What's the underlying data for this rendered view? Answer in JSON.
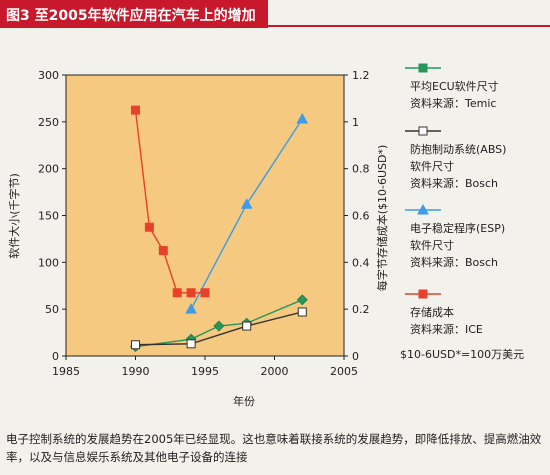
{
  "figure": {
    "title": "图3 至2005年软件应用在汽车上的增加",
    "caption": "电子控制系统的发展趋势在2005年已经显现。这也意味着联接系统的发展趋势，即降低排放、提高燃油效率，以及与信息娱乐系统及其他电子设备的连接"
  },
  "chart_data": {
    "type": "line",
    "xlabel": "年份",
    "ylabel": "软件大小(千字节)",
    "y2label": "每字节存储成本($10-6USD*)",
    "xlim": [
      1985,
      2005
    ],
    "ylim": [
      0,
      300
    ],
    "y2lim": [
      0,
      1.2
    ],
    "x_ticks": [
      "1985",
      "1990",
      "1995",
      "2000",
      "2005"
    ],
    "y_ticks": [
      "0",
      "50",
      "100",
      "150",
      "200",
      "250",
      "300"
    ],
    "y2_ticks": [
      "0",
      "0.2",
      "0.4",
      "0.6",
      "0.8",
      "1",
      "1.2"
    ],
    "plot_background": "#f5c97f",
    "grid": false,
    "legend_position": "right",
    "footnote": "$10-6USD*=100万美元",
    "series": [
      {
        "key": "ecu",
        "name": "平均ECU软件尺寸",
        "source": "资料来源：Temic",
        "axis": "left",
        "color": "#27965a",
        "marker": "diamond",
        "legend_marker": "square",
        "x": [
          1990,
          1994,
          1996,
          1998,
          2002
        ],
        "y": [
          10,
          18,
          32,
          35,
          60
        ]
      },
      {
        "key": "abs",
        "name": "防抱制动系统(ABS)软件尺寸",
        "source": "资料来源：Bosch",
        "axis": "left",
        "color": "#333333",
        "marker": "square-open",
        "legend_marker": "square-open",
        "x": [
          1990,
          1994,
          1998,
          2002
        ],
        "y": [
          12,
          13,
          32,
          47
        ]
      },
      {
        "key": "esp",
        "name": "电子稳定程序(ESP)软件尺寸",
        "source": "资料来源：Bosch",
        "axis": "left",
        "color": "#3d9be9",
        "marker": "triangle",
        "legend_marker": "triangle",
        "x": [
          1994,
          1998,
          2002
        ],
        "y": [
          50,
          162,
          253
        ]
      },
      {
        "key": "cost",
        "name": "存储成本",
        "source": "资料来源：ICE",
        "axis": "right",
        "color": "#e8402a",
        "marker": "square",
        "legend_marker": "square",
        "x": [
          1990,
          1991,
          1992,
          1993,
          1994,
          1995
        ],
        "y": [
          1.05,
          0.55,
          0.45,
          0.27,
          0.27,
          0.27
        ]
      }
    ]
  }
}
